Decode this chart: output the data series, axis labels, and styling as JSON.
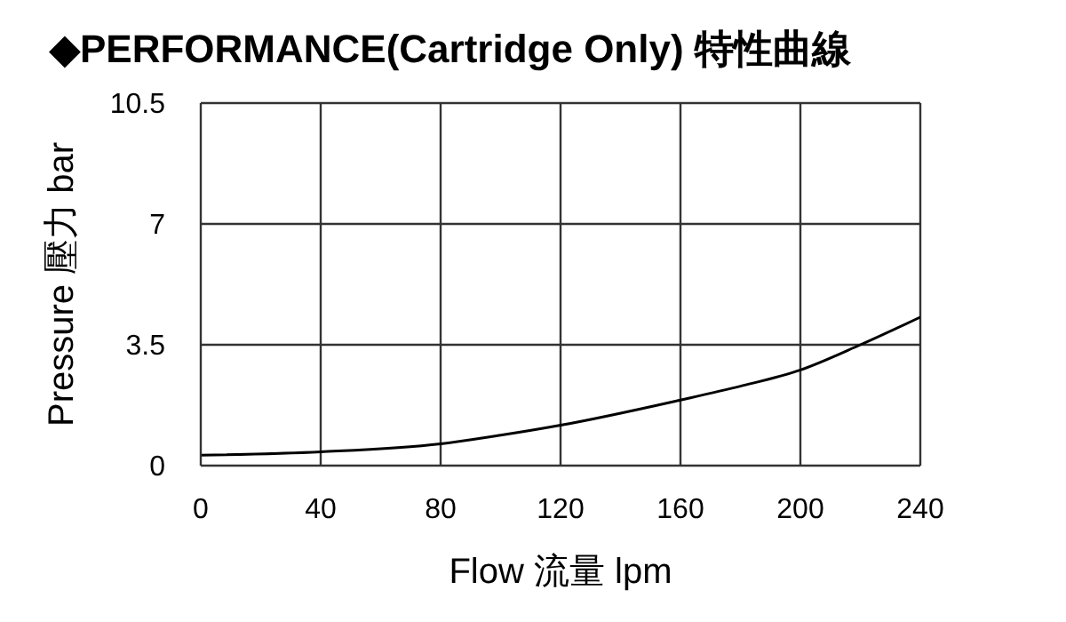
{
  "chart_data": {
    "type": "line",
    "title": "◆PERFORMANCE(Cartridge Only) 特性曲線",
    "xlabel": "Flow 流量 lpm",
    "ylabel": "Pressure 壓力 bar",
    "x": [
      0,
      40,
      80,
      100,
      120,
      160,
      180,
      200,
      220,
      240
    ],
    "series": [
      {
        "color": "#000000",
        "values": [
          0.3,
          0.4,
          0.63,
          0.88,
          1.17,
          1.9,
          2.3,
          2.77,
          3.5,
          4.3
        ]
      }
    ],
    "xlim": [
      0,
      240
    ],
    "xticks": [
      0,
      40,
      80,
      120,
      160,
      200,
      240
    ],
    "ylim": [
      0,
      10.5
    ],
    "yticks": [
      0,
      3.5,
      7,
      10.5
    ],
    "grid": true,
    "marker": "none",
    "line_style": "solid"
  }
}
